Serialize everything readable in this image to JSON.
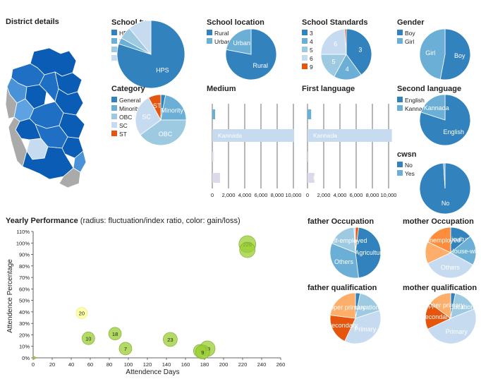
{
  "colors": {
    "blue_dark": "#3182bd",
    "blue_mid": "#6baed6",
    "blue_light": "#9ecae1",
    "blue_pale": "#c6dbef",
    "orange_dark": "#e6550d",
    "orange_mid": "#fd8d3c",
    "orange_light": "#fdae6b",
    "green_bubble": "#9acd32",
    "yellow_bubble": "#ffff99",
    "map_grey": "#aaaaaa"
  },
  "district": {
    "title": "District details"
  },
  "chart_data": [
    {
      "id": "school_type",
      "type": "pie",
      "title": "School type",
      "categories": [
        "HPS",
        "HS",
        "LPS",
        "UHPS"
      ],
      "values": [
        80,
        3,
        6,
        11
      ],
      "slice_labels": [
        "HPS",
        "",
        "",
        ""
      ]
    },
    {
      "id": "school_location",
      "type": "pie",
      "title": "School location",
      "categories": [
        "Rural",
        "Urban"
      ],
      "values": [
        78,
        22
      ],
      "slice_labels": [
        "Rural",
        "Urban"
      ]
    },
    {
      "id": "school_standards",
      "type": "pie",
      "title": "School Standards",
      "categories": [
        "3",
        "4",
        "5",
        "6",
        "9"
      ],
      "values": [
        40,
        18,
        17,
        24,
        1
      ],
      "slice_labels": [
        "3",
        "4",
        "5",
        "6",
        ""
      ]
    },
    {
      "id": "gender",
      "type": "pie",
      "title": "Gender",
      "categories": [
        "Boy",
        "Girl"
      ],
      "values": [
        53,
        47
      ],
      "slice_labels": [
        "Boy",
        "Girl"
      ]
    },
    {
      "id": "category",
      "type": "pie",
      "title": "Category",
      "categories": [
        "General",
        "Minority",
        "OBC",
        "SC",
        "ST"
      ],
      "values": [
        3,
        22,
        40,
        27,
        8
      ],
      "slice_labels": [
        "",
        "Minority",
        "OBC",
        "SC",
        "ST"
      ]
    },
    {
      "id": "medium",
      "type": "bar",
      "title": "Medium",
      "values": [
        350,
        10100,
        200,
        950
      ],
      "bar_labels": [
        "",
        "Kannada",
        "",
        ""
      ],
      "xticks": [
        "0",
        "2,000",
        "4,000",
        "6,000",
        "8,000",
        "10,000"
      ],
      "xlim": [
        0,
        10000
      ]
    },
    {
      "id": "first_language",
      "type": "bar",
      "title": "First language",
      "values": [
        450,
        10400,
        150,
        850
      ],
      "bar_labels": [
        "",
        "Kannada",
        "",
        "U"
      ],
      "xticks": [
        "0",
        "2,000",
        "4,000",
        "6,000",
        "8,000",
        "10,000"
      ],
      "xlim": [
        0,
        10000
      ]
    },
    {
      "id": "second_language",
      "type": "pie",
      "title": "Second language",
      "categories": [
        "English",
        "Kannada"
      ],
      "values": [
        80,
        20
      ],
      "slice_labels": [
        "English",
        "Kannada"
      ]
    },
    {
      "id": "cwsn",
      "type": "pie",
      "title": "cwsn",
      "categories": [
        "No",
        "Yes"
      ],
      "values": [
        99,
        1
      ],
      "slice_labels": [
        "No",
        ""
      ]
    },
    {
      "id": "yearly_performance",
      "type": "scatter",
      "title": "Yearly Performance",
      "subtitle": "(radius: fluctuation/index ratio, color: gain/loss)",
      "xlabel": "Attendence Days",
      "ylabel": "Attendence Percentage",
      "xlim": [
        0,
        260
      ],
      "ylim": [
        0,
        110
      ],
      "xticks": [
        "0",
        "20",
        "40",
        "60",
        "80",
        "100",
        "120",
        "140",
        "160",
        "180",
        "200",
        "220",
        "240",
        "260"
      ],
      "yticks": [
        "0%",
        "10%",
        "20%",
        "30%",
        "40%",
        "50%",
        "60%",
        "70%",
        "80%",
        "90%",
        "100%",
        "110%"
      ],
      "points": [
        {
          "x": 225,
          "y": 99,
          "r": 12,
          "label": "226",
          "gain": true
        },
        {
          "x": 225,
          "y": 94,
          "r": 11,
          "label": "",
          "gain": true
        },
        {
          "x": 51,
          "y": 39,
          "r": 8,
          "label": "20",
          "gain": false
        },
        {
          "x": 86,
          "y": 21,
          "r": 9,
          "label": "18",
          "gain": true
        },
        {
          "x": 58,
          "y": 17,
          "r": 9,
          "label": "10",
          "gain": true
        },
        {
          "x": 144,
          "y": 16,
          "r": 10,
          "label": "23",
          "gain": true
        },
        {
          "x": 97,
          "y": 8,
          "r": 9,
          "label": "7",
          "gain": true
        },
        {
          "x": 183,
          "y": 8,
          "r": 11,
          "label": "13",
          "gain": true
        },
        {
          "x": 175,
          "y": 6,
          "r": 9,
          "label": "",
          "gain": true
        },
        {
          "x": 178,
          "y": 5,
          "r": 10,
          "label": "9",
          "gain": true
        },
        {
          "x": 1,
          "y": 0,
          "r": 2,
          "label": "",
          "gain": true
        }
      ]
    },
    {
      "id": "father_occupation",
      "type": "pie",
      "title": "father Occupation",
      "values": [
        2,
        46,
        33,
        18,
        1
      ],
      "slice_labels": [
        "",
        "Agriculture",
        "Others",
        "Self-employed",
        ""
      ],
      "slice_colors": [
        "#e6550d",
        "#3182bd",
        "#6baed6",
        "#9ecae1",
        "#c6dbef"
      ]
    },
    {
      "id": "mother_occupation",
      "type": "pie",
      "title": "mother Occupation",
      "values": [
        14,
        19,
        35,
        14,
        18
      ],
      "slice_labels": [
        "Agriculture",
        "House-wife",
        "Others",
        "",
        "Unemployed"
      ],
      "slice_colors": [
        "#3182bd",
        "#6baed6",
        "#c6dbef",
        "#fdae6b",
        "#fd8d3c"
      ]
    },
    {
      "id": "father_qualification",
      "type": "pie",
      "title": "father qualification",
      "values": [
        3,
        17,
        37,
        20,
        23
      ],
      "slice_labels": [
        "",
        "Education",
        "Primary",
        "Secondary",
        "Upper primary"
      ],
      "slice_colors": [
        "#3182bd",
        "#9ecae1",
        "#c6dbef",
        "#e6550d",
        "#fdae6b"
      ]
    },
    {
      "id": "mother_qualification",
      "type": "pie",
      "title": "mother qualification",
      "values": [
        3,
        16,
        49,
        17,
        15
      ],
      "slice_labels": [
        "",
        "Education",
        "Primary",
        "Secondary",
        "Upper primary"
      ],
      "slice_colors": [
        "#3182bd",
        "#9ecae1",
        "#c6dbef",
        "#e6550d",
        "#fdae6b"
      ]
    }
  ]
}
